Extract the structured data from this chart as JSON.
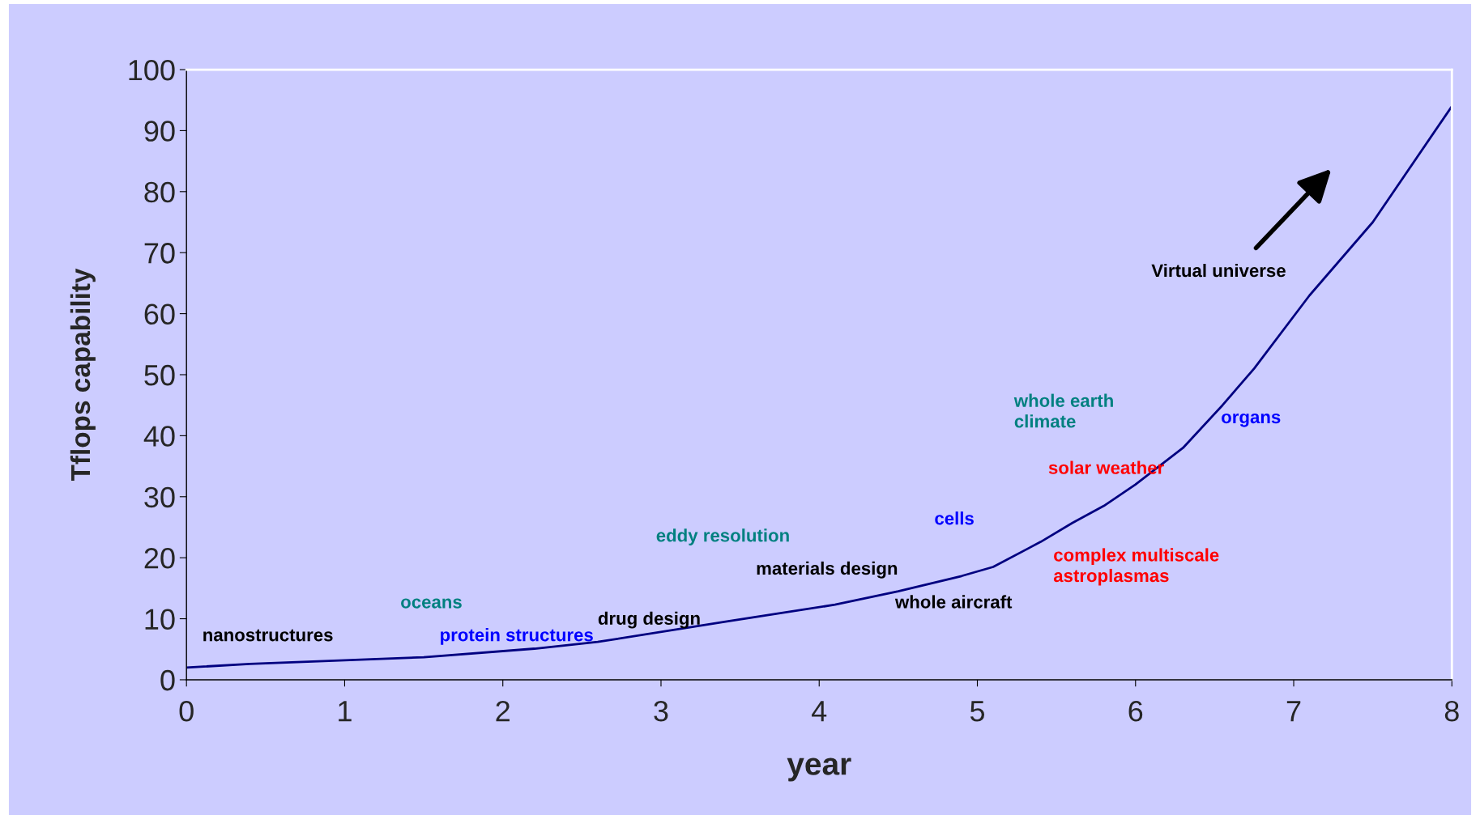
{
  "chart_data": {
    "type": "line",
    "xlabel": "year",
    "ylabel": "Tflops capability",
    "x": [
      0,
      0.4,
      1.5,
      2.2,
      2.6,
      3.4,
      4.1,
      4.5,
      4.9,
      5.1,
      5.4,
      5.6,
      5.8,
      6.0,
      6.3,
      6.55,
      6.75,
      7.1,
      7.5,
      8.0
    ],
    "series": [
      {
        "color": "#000080",
        "values": [
          2,
          2.6,
          3.7,
          5.1,
          6.2,
          9.5,
          12.3,
          14.5,
          17,
          18.5,
          22.6,
          25.7,
          28.5,
          32,
          38,
          45,
          51,
          63,
          75,
          94
        ]
      }
    ],
    "xlim": [
      0,
      8
    ],
    "xticks": [
      0,
      1,
      2,
      3,
      4,
      5,
      6,
      7,
      8
    ],
    "ylim": [
      0,
      100
    ],
    "yticks": [
      0,
      10,
      20,
      30,
      40,
      50,
      60,
      70,
      80,
      90,
      100
    ],
    "grid": false,
    "marker": "none",
    "line_style": "solid",
    "annotations": [
      "nanostructures",
      "oceans",
      "protein structures",
      "drug design",
      "eddy resolution",
      "materials design",
      "whole aircraft",
      "cells",
      "whole earth\nclimate",
      "organs",
      "solar weather",
      "complex multiscale\nastroplasmas",
      "Virtual universe"
    ]
  }
}
